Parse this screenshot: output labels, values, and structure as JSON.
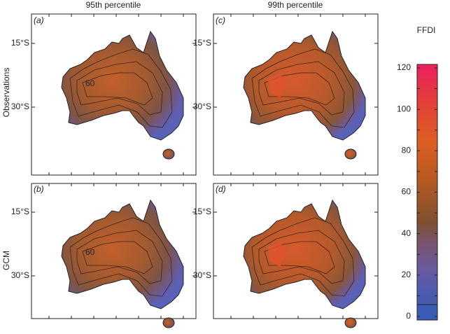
{
  "columns": [
    "95th percentile",
    "99th percentile"
  ],
  "rows": [
    "Observations",
    "GCM"
  ],
  "panels": [
    {
      "label": "(a)",
      "lat_labels": [
        "15°S",
        "30°S"
      ],
      "contour_label": "60"
    },
    {
      "label": "(c)",
      "lat_labels": [
        "15°S",
        "30°S"
      ]
    },
    {
      "label": "(b)",
      "lat_labels": [
        "15°S",
        "30°S"
      ],
      "contour_label": "60"
    },
    {
      "label": "(d)",
      "lat_labels": [
        "15°S",
        "30°S"
      ]
    }
  ],
  "colorbar": {
    "title": "FFDI",
    "lim": [
      0,
      120
    ],
    "ticks": [
      0,
      10,
      20,
      30,
      40,
      50,
      60,
      70,
      80,
      90,
      100,
      110,
      120
    ]
  }
}
